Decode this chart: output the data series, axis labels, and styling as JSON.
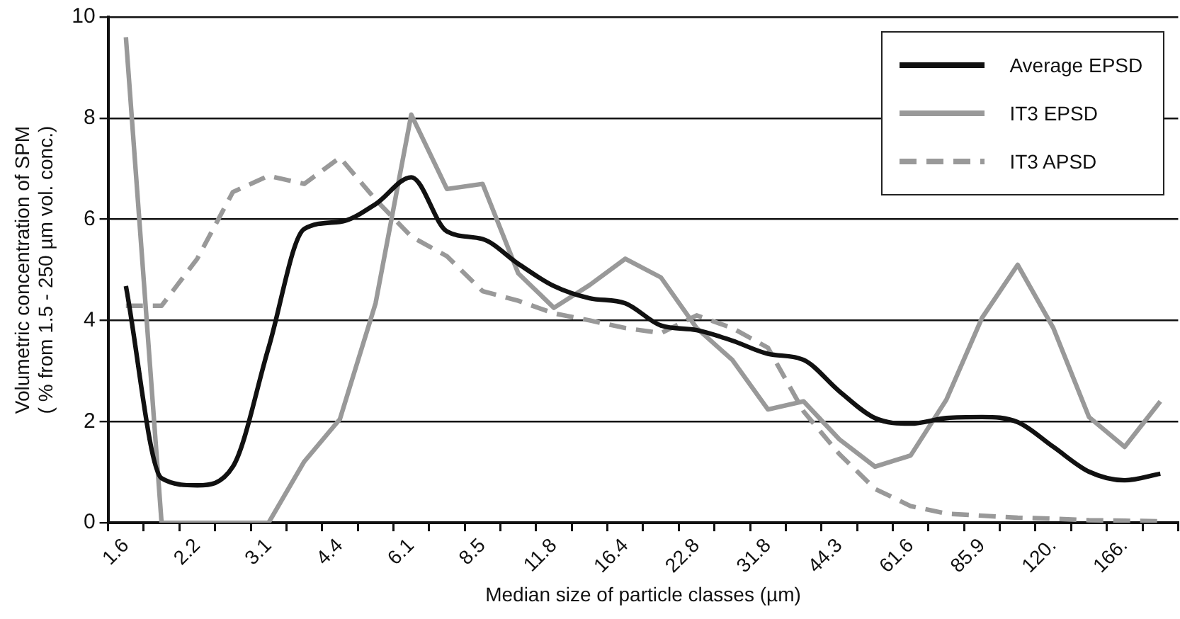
{
  "chart_data": {
    "type": "line",
    "xlabel": "Median size of particle classes (µm)",
    "ylabel": "Volumetric concentration of SPM\n( % from 1.5 - 250 µm vol. conc.)",
    "categories": [
      "1.6",
      null,
      "2.2",
      null,
      "3.1",
      null,
      "4.4",
      null,
      "6.1",
      null,
      "8.5",
      null,
      "11.8",
      null,
      "16.4",
      null,
      "22.8",
      null,
      "31.8",
      null,
      "44.3",
      null,
      "61.6",
      null,
      "85.9",
      null,
      "120.",
      null,
      "166.",
      null
    ],
    "ylim": [
      0,
      10
    ],
    "yticks": [
      0,
      2,
      4,
      6,
      8,
      10
    ],
    "grid": "y",
    "legend": "top right",
    "marker": "none",
    "series": [
      {
        "name": "Average EPSD",
        "color": "#111111",
        "line_style": "solid",
        "values": [
          4.68,
          0.88,
          0.74,
          1.11,
          3.46,
          5.81,
          5.95,
          6.3,
          6.83,
          5.76,
          5.61,
          5.12,
          4.68,
          4.44,
          4.34,
          3.9,
          3.81,
          3.6,
          3.34,
          3.22,
          2.6,
          2.07,
          1.96,
          2.07,
          2.09,
          1.99,
          1.5,
          1.01,
          0.84,
          0.97
        ]
      },
      {
        "name": "IT3 EPSD",
        "color": "#999999",
        "line_style": "solid",
        "values": [
          9.6,
          0,
          0,
          0,
          0,
          1.21,
          2.05,
          4.34,
          8.07,
          6.6,
          6.7,
          4.93,
          4.25,
          4.7,
          5.22,
          4.85,
          3.85,
          3.22,
          2.24,
          2.4,
          1.65,
          1.11,
          1.33,
          2.43,
          4.05,
          5.1,
          3.85,
          2.09,
          1.5,
          2.4
        ]
      },
      {
        "name": "IT3 APSD",
        "color": "#999999",
        "line_style": "dashed",
        "values": [
          4.29,
          4.29,
          5.22,
          6.54,
          6.86,
          6.7,
          7.22,
          6.39,
          5.66,
          5.27,
          4.58,
          4.39,
          4.14,
          4.0,
          3.85,
          3.75,
          4.1,
          3.85,
          3.46,
          2.2,
          1.36,
          0.67,
          0.33,
          0.18,
          0.14,
          0.1,
          0.08,
          0.05,
          0.04,
          0.03
        ]
      }
    ]
  }
}
